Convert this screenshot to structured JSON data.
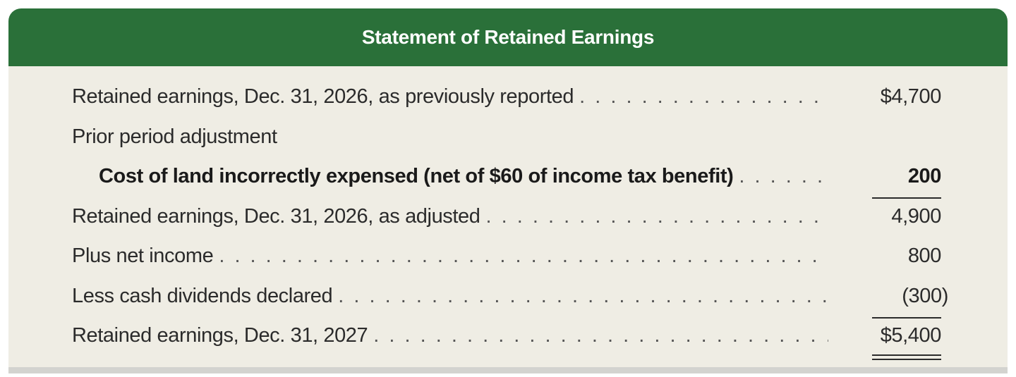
{
  "statement": {
    "title": "Statement of Retained Earnings",
    "rows": [
      {
        "label": "Retained earnings, Dec. 31, 2026, as previously reported",
        "amount": "$4,700"
      },
      {
        "label": "Prior period adjustment",
        "amount": ""
      },
      {
        "label": "Cost of land incorrectly expensed (net of $60 of income tax benefit)",
        "amount": "200"
      },
      {
        "label": "Retained earnings, Dec. 31, 2026, as adjusted",
        "amount": "4,900"
      },
      {
        "label": "Plus net income",
        "amount": "800"
      },
      {
        "label": "Less cash dividends declared",
        "amount": "(300)"
      },
      {
        "label": "Retained earnings, Dec. 31, 2027",
        "amount": "$5,400"
      }
    ]
  },
  "colors": {
    "header_bg": "#2a7039",
    "body_bg": "#efede4"
  }
}
